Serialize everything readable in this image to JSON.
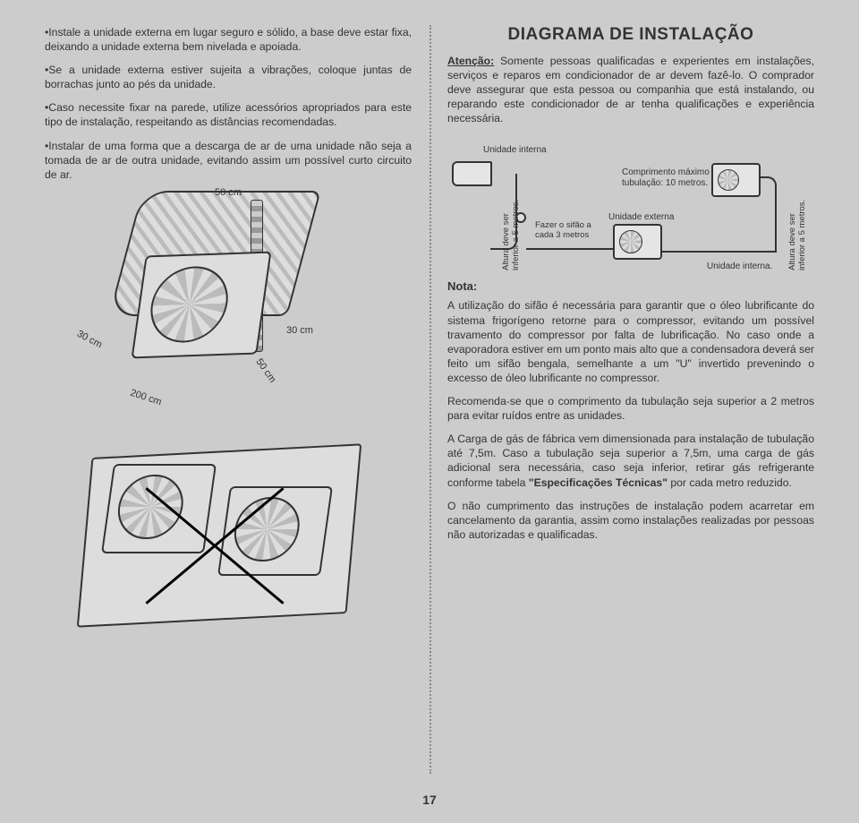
{
  "page_number": "17",
  "left": {
    "bullets": [
      "Instale a unidade externa em lugar seguro e sólido, a base deve estar fixa, deixando a unidade externa bem nivelada e apoiada.",
      "Se a unidade externa estiver sujeita a vibrações, coloque juntas de borrachas junto ao pés da unidade.",
      "Caso necessite fixar na parede, utilize acessórios apropriados para este tipo de instalação, respeitando as distâncias recomendadas.",
      "Instalar de uma forma que a descarga de ar de uma unidade não seja a tomada de ar de outra unidade, evitando assim um possível curto circuito de ar."
    ],
    "figure": {
      "dim_50cm": "50 cm",
      "dim_30cm_l": "30 cm",
      "dim_30cm_r": "30 cm",
      "dim_50cm_b": "50 cm",
      "dim_200cm": "200 cm"
    }
  },
  "right": {
    "title": "DIAGRAMA DE INSTALAÇÃO",
    "warning_label": "Atenção:",
    "warning_text": " Somente pessoas qualificadas e experientes em instalações, serviços e reparos em condicionador de ar devem fazê-lo. O comprador deve assegurar que esta pessoa ou companhia que está instalando, ou reparando este condicionador de ar tenha qualificações e experiência necessária.",
    "diagram": {
      "unidade_interna": "Unidade interna",
      "comprimento": "Comprimento máximo da tubulação: 10 metros.",
      "altura_5m": "Altura deve ser inferior a 5 metros.",
      "sifao": "Fazer o sifão a cada 3 metros",
      "unidade_externa": "Unidade externa",
      "unidade_interna2": "Unidade interna."
    },
    "nota_title": "Nota:",
    "nota": [
      "A utilização do sifão é necessária para garantir que o óleo lubrificante do sistema frigorígeno retorne para o compressor, evitando um possível travamento do compressor por falta de lubrificação. No caso onde a evaporadora estiver em um ponto mais alto que a condensadora deverá ser feito um sifão bengala, semelhante a um \"U\" invertido prevenindo o excesso de óleo lubrificante no compressor.",
      "Recomenda-se que o comprimento da tubulação seja superior a 2 metros para evitar ruídos entre as unidades.",
      "A Carga de gás de fábrica vem dimensionada para instalação de tubulação até 7,5m. Caso a tubulação seja superior a 7,5m, uma carga de gás adicional sera necessária, caso seja inferior, retirar gás refrigerante conforme tabela \"Especificações Técnicas\" por cada metro reduzido.",
      "O não cumprimento das instruções de instalação podem acarretar em cancelamento da garantia, assim como instalações realizadas por pessoas não autorizadas e qualificadas."
    ]
  }
}
